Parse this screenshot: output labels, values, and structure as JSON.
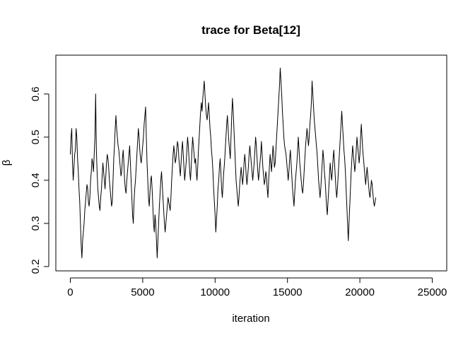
{
  "chart_data": {
    "type": "line",
    "title": "trace for Beta[12]",
    "xlabel": "iteration",
    "ylabel": "β",
    "xlim": [
      -1000,
      26000
    ],
    "ylim": [
      0.19,
      0.69
    ],
    "x_ticks": [
      0,
      5000,
      10000,
      15000,
      20000,
      25000
    ],
    "x_tick_labels": [
      "0",
      "5000",
      "10000",
      "15000",
      "20000",
      "25000"
    ],
    "y_ticks": [
      0.2,
      0.3,
      0.4,
      0.5,
      0.6
    ],
    "y_tick_labels": [
      "0.2",
      "0.3",
      "0.4",
      "0.5",
      "0.6"
    ],
    "grid": false,
    "legend": "none",
    "series_color": "#000000",
    "series": [
      {
        "x_start": 0,
        "x_step": 50,
        "values": [
          0.46,
          0.5,
          0.52,
          0.44,
          0.4,
          0.43,
          0.46,
          0.47,
          0.52,
          0.5,
          0.45,
          0.42,
          0.38,
          0.35,
          0.3,
          0.25,
          0.22,
          0.26,
          0.28,
          0.3,
          0.33,
          0.35,
          0.37,
          0.39,
          0.38,
          0.35,
          0.34,
          0.36,
          0.4,
          0.42,
          0.45,
          0.44,
          0.42,
          0.46,
          0.5,
          0.6,
          0.47,
          0.42,
          0.38,
          0.36,
          0.34,
          0.33,
          0.36,
          0.38,
          0.41,
          0.44,
          0.42,
          0.4,
          0.38,
          0.41,
          0.44,
          0.46,
          0.45,
          0.43,
          0.4,
          0.38,
          0.36,
          0.34,
          0.35,
          0.4,
          0.45,
          0.48,
          0.52,
          0.55,
          0.52,
          0.5,
          0.48,
          0.47,
          0.45,
          0.43,
          0.41,
          0.42,
          0.45,
          0.47,
          0.44,
          0.4,
          0.38,
          0.37,
          0.4,
          0.42,
          0.44,
          0.46,
          0.48,
          0.44,
          0.4,
          0.36,
          0.32,
          0.3,
          0.35,
          0.38,
          0.4,
          0.43,
          0.46,
          0.49,
          0.52,
          0.5,
          0.47,
          0.45,
          0.44,
          0.46,
          0.48,
          0.5,
          0.53,
          0.55,
          0.57,
          0.5,
          0.44,
          0.4,
          0.36,
          0.34,
          0.37,
          0.4,
          0.41,
          0.38,
          0.34,
          0.3,
          0.28,
          0.32,
          0.3,
          0.26,
          0.22,
          0.26,
          0.3,
          0.34,
          0.37,
          0.4,
          0.42,
          0.39,
          0.36,
          0.33,
          0.3,
          0.28,
          0.3,
          0.32,
          0.34,
          0.36,
          0.35,
          0.34,
          0.33,
          0.36,
          0.4,
          0.43,
          0.46,
          0.48,
          0.46,
          0.44,
          0.45,
          0.47,
          0.49,
          0.48,
          0.45,
          0.43,
          0.41,
          0.44,
          0.47,
          0.49,
          0.46,
          0.43,
          0.4,
          0.42,
          0.44,
          0.47,
          0.5,
          0.48,
          0.45,
          0.42,
          0.4,
          0.43,
          0.47,
          0.5,
          0.48,
          0.46,
          0.44,
          0.45,
          0.42,
          0.4,
          0.43,
          0.47,
          0.5,
          0.53,
          0.56,
          0.58,
          0.56,
          0.59,
          0.61,
          0.63,
          0.6,
          0.57,
          0.55,
          0.54,
          0.56,
          0.58,
          0.55,
          0.52,
          0.5,
          0.47,
          0.45,
          0.42,
          0.38,
          0.35,
          0.32,
          0.28,
          0.31,
          0.34,
          0.38,
          0.4,
          0.43,
          0.45,
          0.42,
          0.38,
          0.36,
          0.39,
          0.42,
          0.44,
          0.47,
          0.5,
          0.53,
          0.55,
          0.52,
          0.49,
          0.47,
          0.45,
          0.5,
          0.55,
          0.59,
          0.56,
          0.52,
          0.48,
          0.44,
          0.4,
          0.38,
          0.36,
          0.34,
          0.36,
          0.39,
          0.41,
          0.43,
          0.41,
          0.39,
          0.41,
          0.44,
          0.46,
          0.44,
          0.41,
          0.39,
          0.41,
          0.43,
          0.46,
          0.48,
          0.46,
          0.44,
          0.42,
          0.4,
          0.42,
          0.44,
          0.47,
          0.5,
          0.48,
          0.45,
          0.42,
          0.4,
          0.42,
          0.44,
          0.46,
          0.49,
          0.46,
          0.43,
          0.41,
          0.39,
          0.4,
          0.42,
          0.41,
          0.38,
          0.36,
          0.4,
          0.43,
          0.46,
          0.44,
          0.42,
          0.45,
          0.48,
          0.46,
          0.43,
          0.44,
          0.47,
          0.5,
          0.53,
          0.56,
          0.59,
          0.62,
          0.66,
          0.63,
          0.6,
          0.56,
          0.53,
          0.5,
          0.48,
          0.47,
          0.46,
          0.44,
          0.42,
          0.4,
          0.42,
          0.45,
          0.47,
          0.44,
          0.41,
          0.38,
          0.36,
          0.34,
          0.37,
          0.4,
          0.42,
          0.44,
          0.47,
          0.5,
          0.47,
          0.44,
          0.42,
          0.4,
          0.38,
          0.37,
          0.39,
          0.42,
          0.45,
          0.48,
          0.5,
          0.52,
          0.5,
          0.48,
          0.5,
          0.53,
          0.55,
          0.58,
          0.63,
          0.6,
          0.57,
          0.54,
          0.52,
          0.5,
          0.48,
          0.46,
          0.43,
          0.4,
          0.38,
          0.36,
          0.38,
          0.41,
          0.44,
          0.47,
          0.45,
          0.42,
          0.4,
          0.37,
          0.34,
          0.32,
          0.35,
          0.38,
          0.41,
          0.44,
          0.42,
          0.4,
          0.42,
          0.45,
          0.47,
          0.44,
          0.41,
          0.38,
          0.36,
          0.38,
          0.41,
          0.44,
          0.47,
          0.5,
          0.53,
          0.56,
          0.53,
          0.5,
          0.47,
          0.45,
          0.42,
          0.38,
          0.34,
          0.3,
          0.26,
          0.3,
          0.34,
          0.38,
          0.42,
          0.45,
          0.48,
          0.46,
          0.44,
          0.42,
          0.44,
          0.47,
          0.5,
          0.48,
          0.46,
          0.44,
          0.46,
          0.5,
          0.53,
          0.5,
          0.47,
          0.45,
          0.43,
          0.41,
          0.39,
          0.41,
          0.43,
          0.41,
          0.39,
          0.37,
          0.36,
          0.38,
          0.4,
          0.39,
          0.37,
          0.35,
          0.34,
          0.35,
          0.36
        ]
      }
    ]
  }
}
